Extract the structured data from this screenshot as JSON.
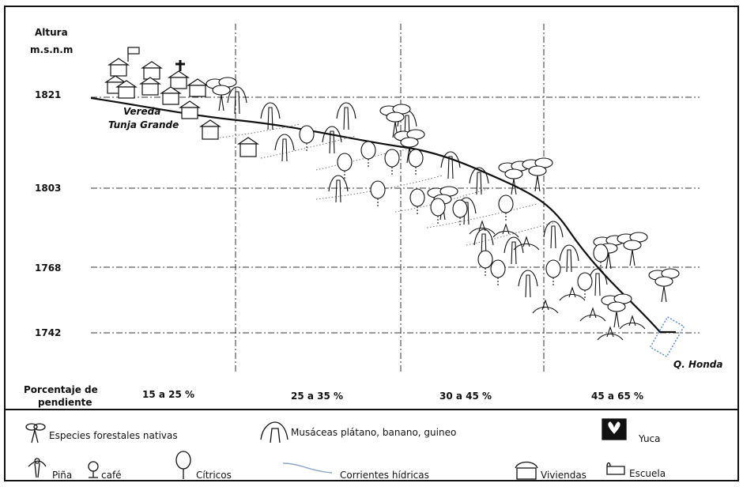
{
  "axis": {
    "title_line1": "Altura",
    "title_line2": "m.s.n.m",
    "ticks": [
      "1821",
      "1803",
      "1768",
      "1742"
    ]
  },
  "places": {
    "vereda_line1": "Vereda",
    "vereda_line2": "Tunja Grande",
    "river": "Q. Honda"
  },
  "slope": {
    "label_line1": "Porcentaje de",
    "label_line2": "pendiente",
    "ranges": [
      "15 a 25 %",
      "25 a 35 %",
      "30 a 45 %",
      "45 a 65 %"
    ]
  },
  "legend": {
    "items": [
      {
        "icon": "native-tree-icon",
        "label": "Especies forestales nativas"
      },
      {
        "icon": "musaceae-icon",
        "label": "Musáceas plátano, banano, guineo"
      },
      {
        "icon": "yuca-icon",
        "label": "Yuca"
      },
      {
        "icon": "pina-icon",
        "label": "Piña"
      },
      {
        "icon": "cafe-icon",
        "label": "café"
      },
      {
        "icon": "citricos-icon",
        "label": "Cítricos"
      },
      {
        "icon": "water-stream-icon",
        "label": "Corrientes hídricas"
      },
      {
        "icon": "house-icon",
        "label": "Viviendas"
      },
      {
        "icon": "school-icon",
        "label": "Escuela"
      }
    ]
  },
  "colors": {
    "line": "#111111",
    "water": "#8aa8c8",
    "river_box": "#5b8fd6"
  }
}
